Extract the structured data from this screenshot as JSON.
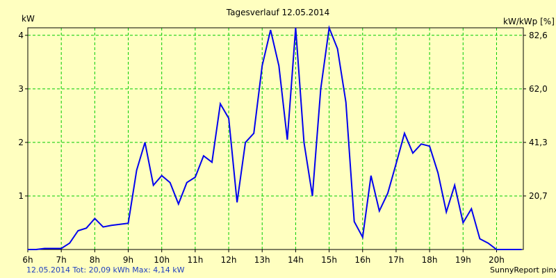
{
  "chart_data": {
    "type": "line",
    "title": "Tagesverlauf 12.05.2014",
    "ylabel_left": "kW",
    "ylabel_right": "kW/kWp [%]",
    "x_ticks": [
      "6h",
      "7h",
      "8h",
      "9h",
      "10h",
      "11h",
      "12h",
      "13h",
      "14h",
      "15h",
      "16h",
      "17h",
      "18h",
      "19h",
      "20h"
    ],
    "y_ticks_left": [
      "1",
      "2",
      "3",
      "4"
    ],
    "y_ticks_right": [
      "20,7",
      "41,3",
      "62,0",
      "82,6"
    ],
    "xlim": [
      6,
      20.8
    ],
    "ylim": [
      0,
      4.14
    ],
    "grid": true,
    "line_color": "#0000ee",
    "grid_color": "#00cc00",
    "series": [
      {
        "x": [
          6.0,
          6.25,
          6.5,
          6.75,
          7.0,
          7.25,
          7.5,
          7.75,
          8.0,
          8.25,
          8.5,
          8.75,
          9.0,
          9.25,
          9.5,
          9.75,
          10.0,
          10.25,
          10.5,
          10.75,
          11.0,
          11.25,
          11.5,
          11.75,
          12.0,
          12.25,
          12.5,
          12.75,
          13.0,
          13.25,
          13.5,
          13.75,
          14.0,
          14.25,
          14.5,
          14.75,
          15.0,
          15.25,
          15.5,
          15.75,
          16.0,
          16.25,
          16.5,
          16.75,
          17.0,
          17.25,
          17.5,
          17.75,
          18.0,
          18.25,
          18.5,
          18.75,
          19.0,
          19.25,
          19.5,
          19.75,
          20.0,
          20.25,
          20.5,
          20.75
        ],
        "y": [
          0.0,
          0.0,
          0.02,
          0.02,
          0.02,
          0.12,
          0.35,
          0.4,
          0.58,
          0.42,
          0.45,
          0.47,
          0.49,
          1.48,
          2.0,
          1.2,
          1.38,
          1.25,
          0.85,
          1.25,
          1.35,
          1.75,
          1.63,
          2.72,
          2.45,
          0.88,
          2.0,
          2.17,
          3.43,
          4.1,
          3.43,
          2.05,
          4.14,
          2.0,
          1.0,
          3.0,
          4.14,
          3.75,
          2.75,
          0.52,
          0.23,
          1.38,
          0.72,
          1.05,
          1.6,
          2.17,
          1.8,
          1.97,
          1.93,
          1.43,
          0.7,
          1.2,
          0.5,
          0.76,
          0.2,
          0.12,
          0.0,
          0.0,
          0.0,
          0.0
        ]
      }
    ]
  },
  "footer": {
    "summary": "12.05.2014 Tot: 20,09 kWh Max: 4,14 kW",
    "brand": "SunnyReport pinxit"
  }
}
